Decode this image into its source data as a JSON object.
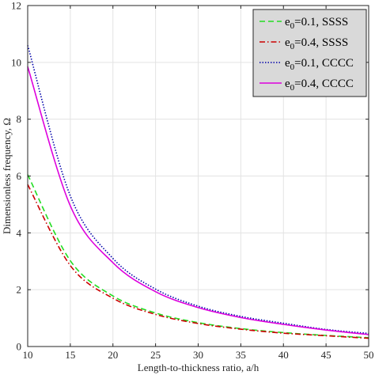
{
  "chart_data": {
    "type": "line",
    "xlabel": "Length-to-thickness ratio, a/h",
    "ylabel": "Dimensionless frequency, Ω",
    "xlim": [
      10,
      50
    ],
    "ylim": [
      0,
      12
    ],
    "xticks": [
      10,
      15,
      20,
      25,
      30,
      35,
      40,
      45,
      50
    ],
    "yticks": [
      0,
      2,
      4,
      6,
      8,
      10,
      12
    ],
    "grid": true,
    "legend_position": "top-right",
    "series": [
      {
        "name": "e0=0.1, SSSS",
        "legend_base": "e",
        "legend_sub": "0",
        "legend_rest": "=0.1, SSSS",
        "color": "#22dd22",
        "dash": "dashed",
        "x": [
          10,
          15,
          20,
          25,
          30,
          35,
          40,
          45,
          50
        ],
        "y": [
          6.05,
          3.02,
          1.78,
          1.18,
          0.84,
          0.63,
          0.49,
          0.39,
          0.31
        ]
      },
      {
        "name": "e0=0.4, SSSS",
        "legend_base": "e",
        "legend_sub": "0",
        "legend_rest": "=0.4, SSSS",
        "color": "#cc0000",
        "dash": "dashdot",
        "x": [
          10,
          15,
          20,
          25,
          30,
          35,
          40,
          45,
          50
        ],
        "y": [
          5.7,
          2.85,
          1.7,
          1.13,
          0.81,
          0.61,
          0.47,
          0.38,
          0.29
        ]
      },
      {
        "name": "e0=0.1, CCCC",
        "legend_base": "e",
        "legend_sub": "0",
        "legend_rest": "=0.1, CCCC",
        "color": "#0000aa",
        "dash": "dotted",
        "x": [
          10,
          15,
          20,
          25,
          30,
          35,
          40,
          45,
          50
        ],
        "y": [
          10.6,
          5.3,
          3.1,
          2.02,
          1.42,
          1.06,
          0.82,
          0.6,
          0.46
        ]
      },
      {
        "name": "e0=0.4, CCCC",
        "legend_base": "e",
        "legend_sub": "0",
        "legend_rest": "=0.4, CCCC",
        "color": "#dd00dd",
        "dash": "solid",
        "x": [
          10,
          15,
          20,
          25,
          30,
          35,
          40,
          45,
          50
        ],
        "y": [
          9.85,
          4.95,
          2.95,
          1.93,
          1.37,
          1.02,
          0.78,
          0.58,
          0.42
        ]
      }
    ]
  }
}
